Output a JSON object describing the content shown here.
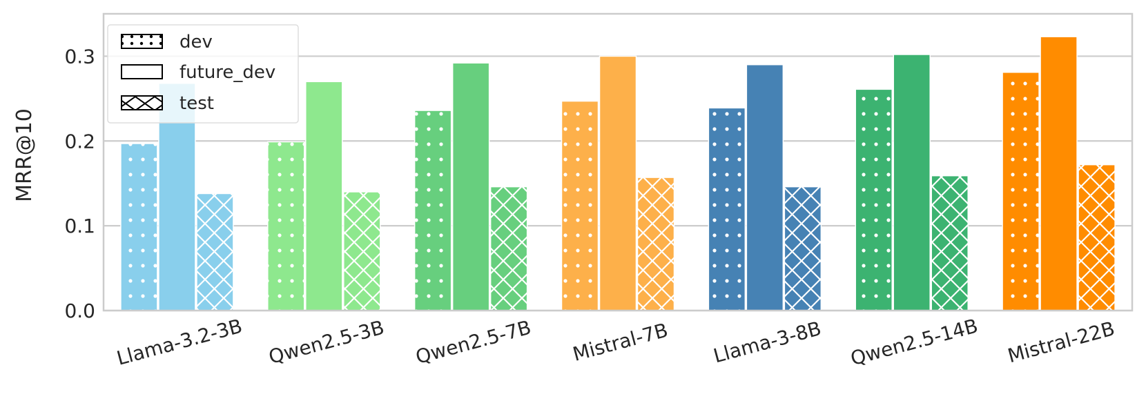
{
  "chart_data": {
    "type": "bar",
    "title": "",
    "xlabel": "",
    "ylabel": "MRR@10",
    "ylim": [
      0,
      0.35
    ],
    "yticks": [
      0.0,
      0.1,
      0.2,
      0.3
    ],
    "ytick_labels": [
      "0.0",
      "0.1",
      "0.2",
      "0.3"
    ],
    "grid": true,
    "legend_position": "top-left",
    "categories": [
      "Llama-3.2-3B",
      "Qwen2.5-3B",
      "Qwen2.5-7B",
      "Mistral-7B",
      "Llama-3-8B",
      "Qwen2.5-14B",
      "Mistral-22B"
    ],
    "category_colors": [
      "#89CFEC",
      "#8EE88E",
      "#67CF7E",
      "#FDB04A",
      "#4682B4",
      "#3CB371",
      "#FF8C00"
    ],
    "series": [
      {
        "name": "dev",
        "pattern": "dots",
        "values": [
          0.197,
          0.199,
          0.236,
          0.247,
          0.239,
          0.261,
          0.281
        ]
      },
      {
        "name": "future_dev",
        "pattern": "solid",
        "values": [
          0.268,
          0.27,
          0.292,
          0.3,
          0.29,
          0.302,
          0.323
        ]
      },
      {
        "name": "test",
        "pattern": "crosshatch",
        "values": [
          0.138,
          0.14,
          0.146,
          0.157,
          0.146,
          0.159,
          0.172
        ]
      }
    ]
  }
}
